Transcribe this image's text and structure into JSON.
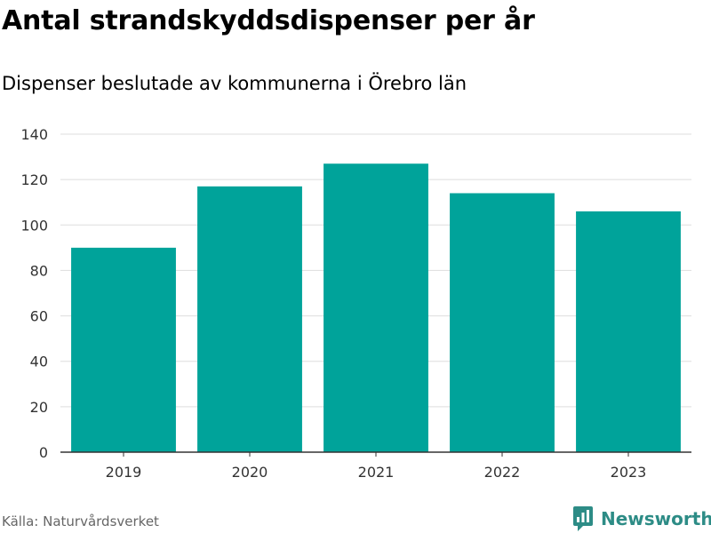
{
  "header": {
    "title": "Antal strandskyddsdispenser per år",
    "subtitle": "Dispenser beslutade av kommunerna i Örebro län"
  },
  "footer": {
    "source": "Källa: Naturvårdsverket",
    "brand": "Newsworthy",
    "brand_icon": "bar-chart-speech-bubble-icon"
  },
  "colors": {
    "bar": "#00a39a",
    "grid": "#dddddd",
    "axis": "#333333",
    "brand": "#2d8c86"
  },
  "chart_data": {
    "type": "bar",
    "categories": [
      "2019",
      "2020",
      "2021",
      "2022",
      "2023"
    ],
    "values": [
      90,
      117,
      127,
      114,
      106
    ],
    "ylim": [
      0,
      140
    ],
    "yticks": [
      0,
      20,
      40,
      60,
      80,
      100,
      120,
      140
    ],
    "grid": true
  }
}
